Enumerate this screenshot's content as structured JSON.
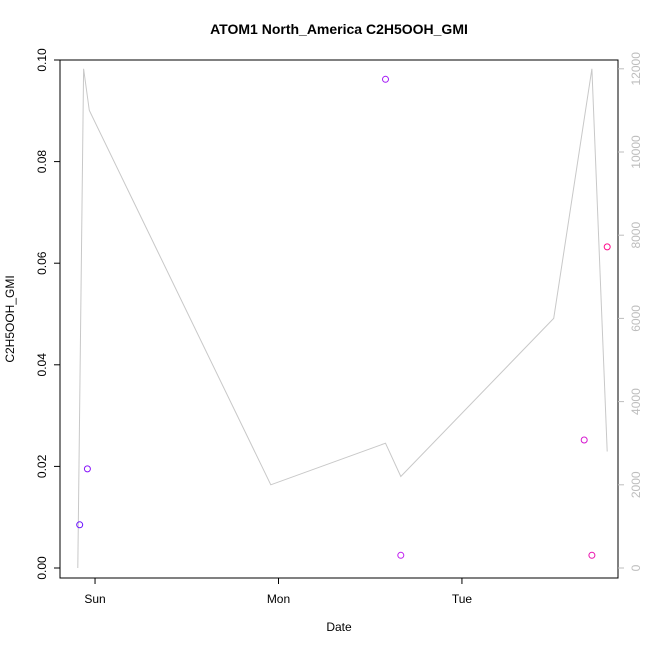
{
  "chart_data": {
    "type": "scatter",
    "title": "ATOM1 North_America C2H5OOH_GMI",
    "xlabel": "Date",
    "ylabel": "C2H5OOH_GMI",
    "x_range": [
      "Sat 19:25",
      "Tue 20:25"
    ],
    "x_ticks": [
      {
        "t": "Sun 00:00",
        "label": "Sun"
      },
      {
        "t": "Mon 00:00",
        "label": "Mon"
      },
      {
        "t": "Tue 00:00",
        "label": "Tue"
      }
    ],
    "ylim": [
      0,
      0.1
    ],
    "yticks": [
      "0.00",
      "0.02",
      "0.04",
      "0.06",
      "0.08",
      "0.10"
    ],
    "y2lim": [
      0,
      12500
    ],
    "y2ticks": [
      "0",
      "2000",
      "4000",
      "6000",
      "8000",
      "10000",
      "12000"
    ],
    "grid": false,
    "legend": "none",
    "colors": {
      "start": "#6a0dff",
      "mid": "#c01ef0",
      "end": "#ff0a8c",
      "altitude_line": "#c8c8c8"
    },
    "series": [
      {
        "role": "C2H5OOH points",
        "times": [
          "Sat 22:00",
          "Sat 23:00",
          "Mon 14:00",
          "Mon 16:00",
          "Tue 16:00",
          "Tue 17:00",
          "Tue 19:00"
        ],
        "values": [
          0.0085,
          0.0195,
          0.0962,
          0.0025,
          0.0252,
          0.0025,
          0.0632
        ]
      },
      {
        "role": "altitude (right axis)",
        "times": [
          "Sat 21:45",
          "Sat 22:30",
          "Sat 23:15",
          "Sun 23:00",
          "Mon 14:00",
          "Mon 16:00",
          "Tue 12:00",
          "Tue 17:00",
          "Tue 19:00"
        ],
        "values": [
          0,
          12000,
          11000,
          2000,
          3000,
          2200,
          6000,
          12000,
          2800
        ]
      }
    ]
  }
}
